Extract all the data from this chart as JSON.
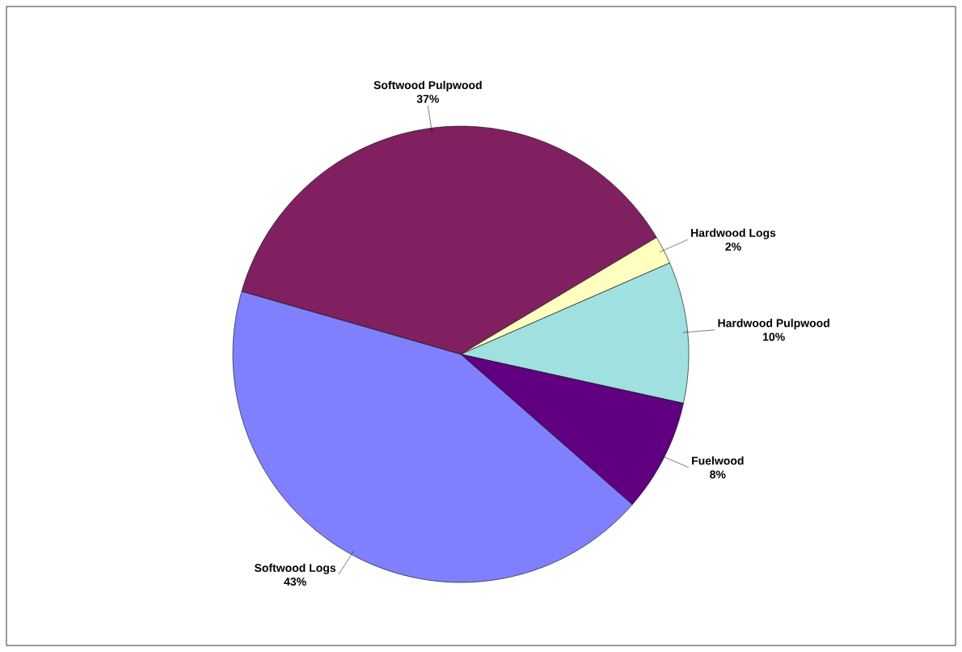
{
  "chart_data": {
    "type": "pie",
    "categories": [
      "Softwood Pulpwood",
      "Hardwood Logs",
      "Hardwood Pulpwood",
      "Fuelwood",
      "Softwood Logs"
    ],
    "values": [
      37,
      2,
      10,
      8,
      43
    ],
    "value_labels": [
      "37%",
      "2%",
      "10%",
      "8%",
      "43%"
    ],
    "colors": [
      "#802060",
      "#ffffc0",
      "#a0e0e0",
      "#600080",
      "#8080ff"
    ],
    "legend": false
  }
}
